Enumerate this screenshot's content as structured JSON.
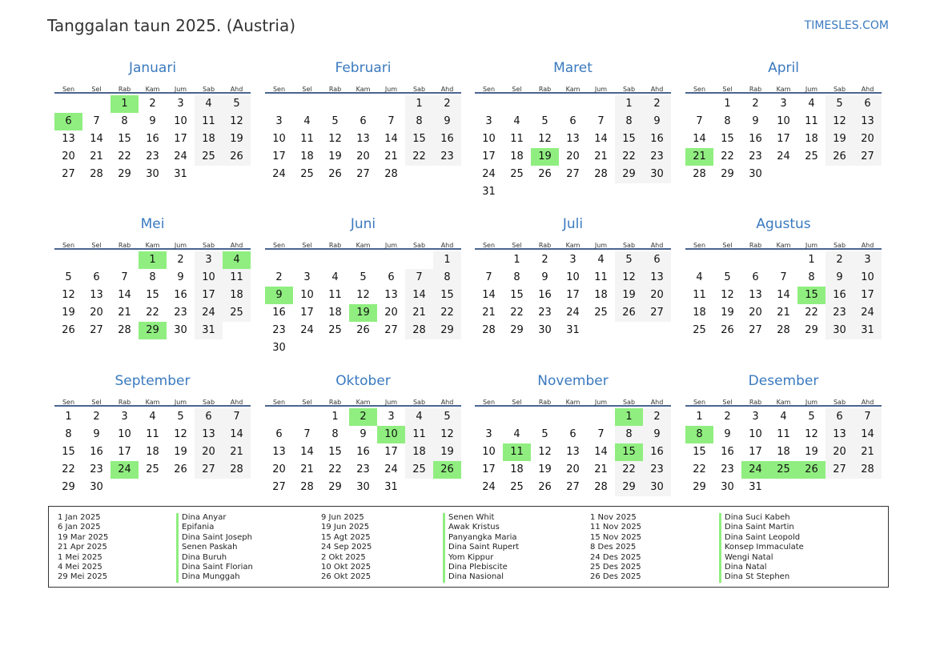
{
  "header": {
    "title": "Tanggalan taun 2025. (Austria)",
    "brand": "TIMESLES.COM"
  },
  "year": 2025,
  "weekdays": [
    "Sen",
    "Sel",
    "Rab",
    "Kam",
    "Jum",
    "Sab",
    "Ahd"
  ],
  "colors": {
    "accent": "#3a7abf",
    "holiday": "#90ee80",
    "weekend": "#f4f4f4",
    "rule": "#4a6591"
  },
  "months": [
    {
      "name": "Januari",
      "holidays": [
        1,
        6
      ]
    },
    {
      "name": "Februari",
      "holidays": []
    },
    {
      "name": "Maret",
      "holidays": [
        19
      ]
    },
    {
      "name": "April",
      "holidays": [
        21
      ]
    },
    {
      "name": "Mei",
      "holidays": [
        1,
        4,
        29
      ]
    },
    {
      "name": "Juni",
      "holidays": [
        9,
        19
      ]
    },
    {
      "name": "Juli",
      "holidays": []
    },
    {
      "name": "Agustus",
      "holidays": [
        15
      ]
    },
    {
      "name": "September",
      "holidays": [
        24
      ]
    },
    {
      "name": "Oktober",
      "holidays": [
        2,
        10,
        26
      ]
    },
    {
      "name": "November",
      "holidays": [
        1,
        11,
        15
      ]
    },
    {
      "name": "Desember",
      "holidays": [
        8,
        24,
        25,
        26
      ]
    }
  ],
  "legend": [
    [
      {
        "date": "1 Jan 2025",
        "name": "Dina Anyar"
      },
      {
        "date": "6 Jan 2025",
        "name": "Epifania"
      },
      {
        "date": "19 Mar 2025",
        "name": "Dina Saint Joseph"
      },
      {
        "date": "21 Apr 2025",
        "name": "Senen Paskah"
      },
      {
        "date": "1 Mei 2025",
        "name": "Dina Buruh"
      },
      {
        "date": "4 Mei 2025",
        "name": "Dina Saint Florian"
      },
      {
        "date": "29 Mei 2025",
        "name": "Dina Munggah"
      }
    ],
    [
      {
        "date": "9 Jun 2025",
        "name": "Senen Whit"
      },
      {
        "date": "19 Jun 2025",
        "name": "Awak Kristus"
      },
      {
        "date": "15 Agt 2025",
        "name": "Panyangka Maria"
      },
      {
        "date": "24 Sep 2025",
        "name": "Dina Saint Rupert"
      },
      {
        "date": "2 Okt 2025",
        "name": "Yom Kippur"
      },
      {
        "date": "10 Okt 2025",
        "name": "Dina Plebiscite"
      },
      {
        "date": "26 Okt 2025",
        "name": "Dina Nasional"
      }
    ],
    [
      {
        "date": "1 Nov 2025",
        "name": "Dina Suci Kabeh"
      },
      {
        "date": "11 Nov 2025",
        "name": "Dina Saint Martin"
      },
      {
        "date": "15 Nov 2025",
        "name": "Dina Saint Leopold"
      },
      {
        "date": "8 Des 2025",
        "name": "Konsep Immaculate"
      },
      {
        "date": "24 Des 2025",
        "name": "Wengi Natal"
      },
      {
        "date": "25 Des 2025",
        "name": "Dina Natal"
      },
      {
        "date": "26 Des 2025",
        "name": "Dina St Stephen"
      }
    ]
  ]
}
